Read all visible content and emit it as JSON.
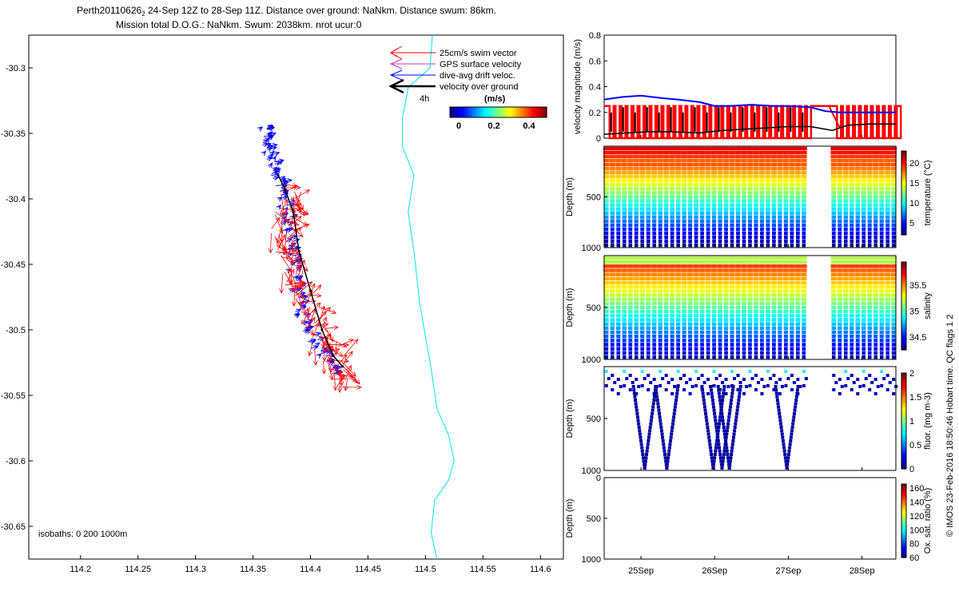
{
  "header": {
    "title_prefix": "Perth20110626",
    "title_sub": "2",
    "title_rest": " 24-Sep 12Z to 28-Sep 11Z. Distance over ground: NaNkm. Distance swum: 86km.",
    "title_line2": "Mission total D.O.G.: NaNkm. Swum: 2038km. nrot ucur:0"
  },
  "side_note": "© IMOS 23-Feb-2016 18:50:46 Hobart time. QC flags 1  2",
  "colors": {
    "swim": "#ff0000",
    "gps": "#cc33cc",
    "drift": "#0000ff",
    "ground": "#000000",
    "isobath": "#00e5ee",
    "jet": [
      "#00008f",
      "#0000ff",
      "#0080ff",
      "#00ffff",
      "#80ff80",
      "#ffff00",
      "#ff8000",
      "#ff0000",
      "#800000"
    ]
  },
  "chart_data": [
    {
      "type": "line",
      "name": "track-map",
      "xlabel": "",
      "ylabel": "",
      "xlim": [
        114.155,
        114.62
      ],
      "ylim": [
        -30.675,
        -30.275
      ],
      "xticks": [
        114.2,
        114.25,
        114.3,
        114.35,
        114.4,
        114.45,
        114.5,
        114.55,
        114.6
      ],
      "xtick_labels": [
        "114.2",
        "114.25",
        "114.3",
        "114.35",
        "114.4",
        "114.45",
        "114.5",
        "114.55",
        "114.6"
      ],
      "yticks": [
        -30.3,
        -30.35,
        -30.4,
        -30.45,
        -30.5,
        -30.55,
        -30.6,
        -30.65
      ],
      "ytick_labels": [
        "-30.3",
        "-30.35",
        "-30.4",
        "-30.45",
        "-30.5",
        "-30.55",
        "-30.6",
        "-30.65"
      ],
      "isobath_label": "isobaths: 0   200  1000m",
      "isobath": [
        [
          114.506,
          -30.275
        ],
        [
          114.504,
          -30.3
        ],
        [
          114.485,
          -30.315
        ],
        [
          114.48,
          -30.338
        ],
        [
          114.48,
          -30.36
        ],
        [
          114.49,
          -30.382
        ],
        [
          114.485,
          -30.41
        ],
        [
          114.49,
          -30.44
        ],
        [
          114.495,
          -30.48
        ],
        [
          114.505,
          -30.53
        ],
        [
          114.51,
          -30.56
        ],
        [
          114.52,
          -30.58
        ],
        [
          114.525,
          -30.6
        ],
        [
          114.52,
          -30.615
        ],
        [
          114.508,
          -30.63
        ],
        [
          114.505,
          -30.655
        ],
        [
          114.51,
          -30.675
        ]
      ],
      "drift_path": [
        [
          114.36,
          -30.345
        ],
        [
          114.36,
          -30.36
        ],
        [
          114.37,
          -30.38
        ],
        [
          114.375,
          -30.4
        ],
        [
          114.38,
          -30.43
        ],
        [
          114.385,
          -30.46
        ],
        [
          114.39,
          -30.49
        ],
        [
          114.405,
          -30.515
        ],
        [
          114.425,
          -30.535
        ]
      ],
      "swim_path": [
        [
          114.385,
          -30.39
        ],
        [
          114.375,
          -30.42
        ],
        [
          114.38,
          -30.45
        ],
        [
          114.4,
          -30.49
        ],
        [
          114.415,
          -30.515
        ],
        [
          114.43,
          -30.54
        ]
      ],
      "ground_path": [
        [
          114.372,
          -30.382
        ],
        [
          114.378,
          -30.393
        ],
        [
          114.385,
          -30.41
        ],
        [
          114.39,
          -30.44
        ],
        [
          114.4,
          -30.47
        ],
        [
          114.41,
          -30.5
        ],
        [
          114.42,
          -30.52
        ],
        [
          114.428,
          -30.528
        ]
      ],
      "legend": {
        "items": [
          "25cm/s swim vector",
          "GPS surface velocity",
          "dive-avg drift veloc.",
          "velocity over ground"
        ],
        "scale_label": "4h",
        "colorbar_title": "(m/s)",
        "colorbar_ticks": [
          "0",
          "0.2",
          "0.4"
        ],
        "colorbar_values": [
          0,
          0.2,
          0.4
        ],
        "colorbar_range": [
          -0.05,
          0.5
        ]
      }
    },
    {
      "type": "line",
      "name": "velocity-magnitude",
      "ylabel": "velocity magnitude (m/s)",
      "xlim": [
        24.5,
        28.46
      ],
      "ylim": [
        0,
        0.8
      ],
      "yticks": [
        0,
        0.2,
        0.4,
        0.6,
        0.8
      ],
      "ytick_labels": [
        "0",
        "0.2",
        "0.4",
        "0.6",
        "0.8"
      ],
      "series": [
        {
          "name": "dive-avg drift",
          "x": [
            24.5,
            24.75,
            25.0,
            25.3,
            25.5,
            25.8,
            26.0,
            26.2,
            26.5,
            26.8,
            27.0,
            27.3,
            27.5,
            27.7,
            28.0,
            28.2,
            28.46
          ],
          "values": [
            0.3,
            0.32,
            0.33,
            0.31,
            0.3,
            0.28,
            0.25,
            0.25,
            0.26,
            0.25,
            0.25,
            0.24,
            0.21,
            0.2,
            0.2,
            0.2,
            0.2
          ]
        },
        {
          "name": "ground velocity",
          "x": [
            24.5,
            24.8,
            25.1,
            25.4,
            25.8,
            26.1,
            26.4,
            26.7,
            27.0,
            27.3,
            27.6,
            27.8,
            28.1,
            28.46
          ],
          "values": [
            0.03,
            0.04,
            0.05,
            0.05,
            0.04,
            0.06,
            0.07,
            0.08,
            0.09,
            0.09,
            0.06,
            0.1,
            0.11,
            0.11
          ]
        }
      ],
      "swim_level": 0.25,
      "swim_low_level": 0.08,
      "swim_slope_start": 27.55,
      "swim_slope_end": 27.7
    },
    {
      "type": "scatter",
      "name": "temperature-section",
      "ylabel": "Depth (m)",
      "yticks": [
        500,
        1000
      ],
      "ytick_labels": [
        "500",
        "1000"
      ],
      "ylim": [
        1000,
        0
      ],
      "clabel": "temperature (°C)",
      "cticks": [
        5,
        10,
        15,
        20
      ],
      "ctick_labels": [
        "5",
        "10",
        "15",
        "20"
      ],
      "crange": [
        2,
        23
      ]
    },
    {
      "type": "scatter",
      "name": "salinity-section",
      "ylabel": "Depth (m)",
      "yticks": [
        500,
        1000
      ],
      "ytick_labels": [
        "500",
        "1000"
      ],
      "ylim": [
        1000,
        0
      ],
      "clabel": "salinity",
      "cticks": [
        34.5,
        35,
        35.5
      ],
      "ctick_labels": [
        "34.5",
        "35",
        "35.5"
      ],
      "crange": [
        34.25,
        35.95
      ]
    },
    {
      "type": "scatter",
      "name": "fluorescence-section",
      "ylabel": "Depth (m)",
      "yticks": [
        500,
        1000
      ],
      "ytick_labels": [
        "500",
        "1000"
      ],
      "ylim": [
        1000,
        0
      ],
      "clabel": "fluor. (mg m-3)",
      "cticks": [
        0,
        0.5,
        1,
        1.5,
        2
      ],
      "ctick_labels": [
        "0",
        "0.5",
        "1",
        "1.5",
        "2"
      ],
      "crange": [
        0,
        2
      ]
    },
    {
      "type": "scatter",
      "name": "oxygen-section",
      "ylabel": "Depth (m)",
      "yticks": [
        0,
        500,
        1000
      ],
      "ytick_labels": [
        "0",
        "500",
        "1000"
      ],
      "ylim": [
        1000,
        0
      ],
      "clabel": "Ox. sat. ratio (%)",
      "cticks": [
        60,
        80,
        100,
        120,
        140,
        160
      ],
      "ctick_labels": [
        "60",
        "80",
        "100",
        "120",
        "140",
        "160"
      ],
      "crange": [
        60,
        166
      ],
      "xticks": [
        25,
        26,
        27,
        28
      ],
      "xtick_labels": [
        "25Sep",
        "26Sep",
        "27Sep",
        "28Sep"
      ]
    }
  ],
  "profiles": {
    "day_range": [
      24.5,
      28.46
    ],
    "gap_days": [
      [
        27.25,
        27.6
      ]
    ],
    "count": 48,
    "fluor_dives": [
      25.05,
      25.35,
      25.98,
      26.1,
      26.2,
      26.98
    ]
  }
}
